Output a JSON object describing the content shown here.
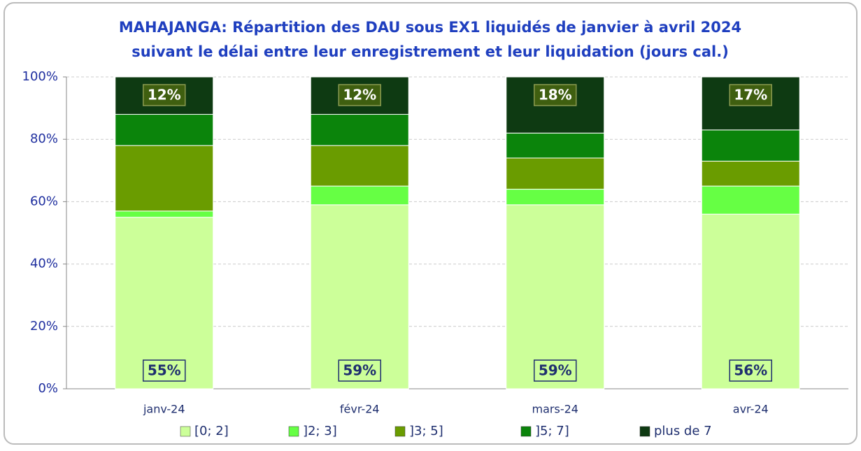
{
  "chart_data": {
    "type": "stacked_bar",
    "title": "MAHAJANGA: Répartition des DAU sous EX1 liquidés de janvier à avril 2024",
    "subtitle": "suivant le délai entre leur enregistrement et leur liquidation (jours cal.)",
    "categories": [
      "janv-24",
      "févr-24",
      "mars-24",
      "avr-24"
    ],
    "series": [
      {
        "name": "[0; 2]",
        "color": "#ccff99",
        "values": [
          55,
          59,
          59,
          56
        ],
        "value_labels": [
          "55%",
          "59%",
          "59%",
          "56%"
        ]
      },
      {
        "name": "]2; 3]",
        "color": "#66ff44",
        "values": [
          2,
          6,
          5,
          9
        ]
      },
      {
        "name": "]3; 5]",
        "color": "#6a9c00",
        "values": [
          21,
          13,
          10,
          8
        ]
      },
      {
        "name": "]5; 7]",
        "color": "#0b840b",
        "values": [
          10,
          10,
          8,
          10
        ]
      },
      {
        "name": "plus de 7",
        "color": "#0e3a12",
        "values": [
          12,
          12,
          18,
          17
        ],
        "value_labels": [
          "12%",
          "12%",
          "18%",
          "17%"
        ]
      }
    ],
    "ylim": [
      0,
      100
    ],
    "yticks": [
      {
        "value": 0,
        "label": "0%"
      },
      {
        "value": 20,
        "label": "20%"
      },
      {
        "value": 40,
        "label": "40%"
      },
      {
        "value": 60,
        "label": "60%"
      },
      {
        "value": 80,
        "label": "80%"
      },
      {
        "value": 100,
        "label": "100%"
      }
    ],
    "grid": true,
    "legend": "bottom"
  }
}
